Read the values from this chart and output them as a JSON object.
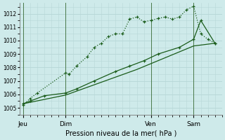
{
  "bg_color": "#ceeaea",
  "grid_color": "#b8d8d8",
  "line_color": "#1a5c1a",
  "xlabel": "Pression niveau de la mer( hPa )",
  "ylim": [
    1004.5,
    1012.8
  ],
  "yticks": [
    1005,
    1006,
    1007,
    1008,
    1009,
    1010,
    1011,
    1012
  ],
  "xtick_labels": [
    "Jeu",
    "Dim",
    "Ven",
    "Sam"
  ],
  "xtick_positions": [
    0,
    24,
    72,
    96
  ],
  "series1_x": [
    0,
    4,
    8,
    24,
    26,
    30,
    36,
    40,
    44,
    48,
    52,
    56,
    60,
    64,
    68,
    72,
    76,
    80,
    84,
    88,
    92,
    96,
    100,
    104,
    108
  ],
  "series1_y": [
    1005.2,
    1005.7,
    1006.1,
    1007.6,
    1007.5,
    1008.1,
    1008.8,
    1009.5,
    1009.8,
    1010.3,
    1010.5,
    1010.5,
    1011.6,
    1011.75,
    1011.4,
    1011.5,
    1011.65,
    1011.75,
    1011.6,
    1011.75,
    1012.3,
    1012.55,
    1010.5,
    1010.1,
    1009.8
  ],
  "series2_x": [
    0,
    4,
    12,
    24,
    30,
    40,
    52,
    60,
    68,
    76,
    88,
    96,
    100,
    108
  ],
  "series2_y": [
    1005.3,
    1005.5,
    1005.9,
    1006.1,
    1006.4,
    1007.0,
    1007.7,
    1008.1,
    1008.5,
    1009.0,
    1009.5,
    1010.1,
    1011.5,
    1009.8
  ],
  "series3_x": [
    0,
    24,
    64,
    96,
    108
  ],
  "series3_y": [
    1005.3,
    1005.95,
    1007.85,
    1009.6,
    1009.8
  ],
  "xmax": 112,
  "xmin": -2
}
